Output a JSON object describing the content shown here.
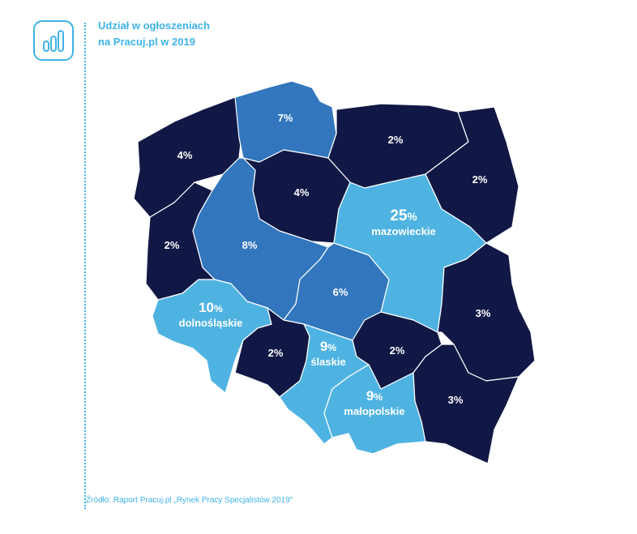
{
  "title": {
    "line1": "Udział w ogłoszeniach",
    "line2": "na Pracuj.pl w 2019"
  },
  "icon": "bar-chart-icon",
  "source": "Źródło: Raport Pracuj.pl „Rynek Pracy Specjalistów 2019\"",
  "colors": {
    "dark": "#121845",
    "medium": "#3276bd",
    "light": "#4fb3e2",
    "accent": "#3fb3e6"
  },
  "regions": [
    {
      "id": "zachodniopomorskie",
      "value": "4",
      "name": ""
    },
    {
      "id": "pomorskie",
      "value": "7",
      "name": ""
    },
    {
      "id": "warminsko-mazurskie",
      "value": "2",
      "name": ""
    },
    {
      "id": "podlaskie",
      "value": "2",
      "name": ""
    },
    {
      "id": "kujawsko-pomorskie",
      "value": "4",
      "name": ""
    },
    {
      "id": "lubuskie",
      "value": "2",
      "name": ""
    },
    {
      "id": "wielkopolskie",
      "value": "8",
      "name": ""
    },
    {
      "id": "mazowieckie",
      "value": "25",
      "name": "mazowieckie"
    },
    {
      "id": "lodzkie",
      "value": "6",
      "name": ""
    },
    {
      "id": "dolnoslaskie",
      "value": "10",
      "name": "dolnośląskie"
    },
    {
      "id": "lubelskie",
      "value": "3",
      "name": ""
    },
    {
      "id": "opolskie",
      "value": "2",
      "name": ""
    },
    {
      "id": "slaskie",
      "value": "9",
      "name": "ślaskie"
    },
    {
      "id": "swietokrzyskie",
      "value": "2",
      "name": ""
    },
    {
      "id": "malopolskie",
      "value": "9",
      "name": "małopolskie"
    },
    {
      "id": "podkarpackie",
      "value": "3",
      "name": ""
    }
  ],
  "percent_sign": "%"
}
